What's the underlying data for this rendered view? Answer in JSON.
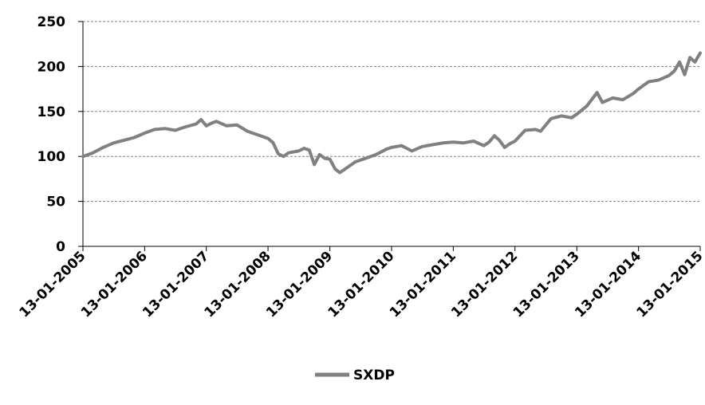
{
  "chart_data": {
    "type": "line",
    "title": "",
    "xlabel": "",
    "ylabel": "",
    "ylim": [
      0,
      250
    ],
    "yticks": [
      "0",
      "50",
      "100",
      "150",
      "200",
      "250"
    ],
    "xticks": [
      "13-01-2005",
      "13-01-2006",
      "13-01-2007",
      "13-01-2008",
      "13-01-2009",
      "13-01-2010",
      "13-01-2011",
      "13-01-2012",
      "13-01-2013",
      "13-01-2014",
      "13-01-2015"
    ],
    "xlim": [
      "13-01-2005",
      "13-01-2015"
    ],
    "grid": "horizontal dashed",
    "legend": "bottom-center",
    "series": [
      {
        "name": "SXDP",
        "color": "#808080",
        "points": [
          [
            "13-01-2005",
            100
          ],
          [
            "13-03-2005",
            104
          ],
          [
            "13-05-2005",
            110
          ],
          [
            "13-07-2005",
            115
          ],
          [
            "13-09-2005",
            118
          ],
          [
            "13-11-2005",
            121
          ],
          [
            "13-01-2006",
            126
          ],
          [
            "13-03-2006",
            130
          ],
          [
            "13-05-2006",
            131
          ],
          [
            "13-07-2006",
            129
          ],
          [
            "13-09-2006",
            133
          ],
          [
            "13-11-2006",
            136
          ],
          [
            "13-12-2006",
            141
          ],
          [
            "13-01-2007",
            134
          ],
          [
            "13-02-2007",
            137
          ],
          [
            "13-03-2007",
            139
          ],
          [
            "13-05-2007",
            134
          ],
          [
            "13-07-2007",
            135
          ],
          [
            "13-09-2007",
            128
          ],
          [
            "13-11-2007",
            124
          ],
          [
            "13-01-2008",
            120
          ],
          [
            "13-02-2008",
            115
          ],
          [
            "13-03-2008",
            103
          ],
          [
            "13-04-2008",
            100
          ],
          [
            "13-05-2008",
            104
          ],
          [
            "13-07-2008",
            106
          ],
          [
            "13-08-2008",
            109
          ],
          [
            "13-09-2008",
            107
          ],
          [
            "13-10-2008",
            91
          ],
          [
            "13-11-2008",
            102
          ],
          [
            "13-12-2008",
            98
          ],
          [
            "13-01-2009",
            97
          ],
          [
            "13-02-2009",
            86
          ],
          [
            "13-03-2009",
            82
          ],
          [
            "13-04-2009",
            86
          ],
          [
            "13-06-2009",
            94
          ],
          [
            "13-08-2009",
            98
          ],
          [
            "13-10-2009",
            102
          ],
          [
            "13-12-2009",
            108
          ],
          [
            "13-01-2010",
            110
          ],
          [
            "13-03-2010",
            112
          ],
          [
            "13-05-2010",
            106
          ],
          [
            "13-07-2010",
            111
          ],
          [
            "13-09-2010",
            113
          ],
          [
            "13-11-2010",
            115
          ],
          [
            "13-01-2011",
            116
          ],
          [
            "13-03-2011",
            115
          ],
          [
            "13-05-2011",
            117
          ],
          [
            "13-07-2011",
            112
          ],
          [
            "13-08-2011",
            116
          ],
          [
            "13-09-2011",
            123
          ],
          [
            "13-10-2011",
            118
          ],
          [
            "13-11-2011",
            110
          ],
          [
            "13-12-2011",
            114
          ],
          [
            "13-01-2012",
            117
          ],
          [
            "13-03-2012",
            129
          ],
          [
            "13-05-2012",
            130
          ],
          [
            "13-06-2012",
            128
          ],
          [
            "13-08-2012",
            142
          ],
          [
            "13-10-2012",
            145
          ],
          [
            "13-12-2012",
            143
          ],
          [
            "13-01-2013",
            147
          ],
          [
            "13-03-2013",
            156
          ],
          [
            "13-05-2013",
            171
          ],
          [
            "13-06-2013",
            160
          ],
          [
            "13-08-2013",
            165
          ],
          [
            "13-10-2013",
            163
          ],
          [
            "13-12-2013",
            170
          ],
          [
            "13-01-2014",
            175
          ],
          [
            "13-03-2014",
            183
          ],
          [
            "13-05-2014",
            185
          ],
          [
            "13-07-2014",
            190
          ],
          [
            "13-08-2014",
            195
          ],
          [
            "13-09-2014",
            205
          ],
          [
            "13-10-2014",
            191
          ],
          [
            "13-11-2014",
            210
          ],
          [
            "13-12-2014",
            205
          ],
          [
            "13-01-2015",
            215
          ]
        ]
      }
    ]
  }
}
